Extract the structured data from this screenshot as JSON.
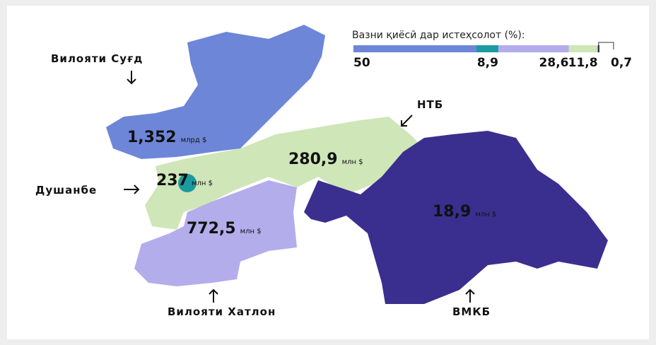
{
  "legend": {
    "title": "Вазни қиёсӣ дар истеҳсолот (%):",
    "segments": [
      {
        "value": 50,
        "label": "50",
        "color": "#6e86d8"
      },
      {
        "value": 8.9,
        "label": "8,9",
        "color": "#1b9aa0"
      },
      {
        "value": 28.6,
        "label": "28,6",
        "color": "#b3adec"
      },
      {
        "value": 11.8,
        "label": "11,8",
        "color": "#cfe6b8"
      },
      {
        "value": 0.7,
        "label": "0,7",
        "color": "#3a2f8f"
      }
    ]
  },
  "regions": [
    {
      "name": "Вилояти Суғд",
      "amount": "1,352",
      "unit": "млрд $"
    },
    {
      "name": "Душанбе",
      "amount": "237",
      "unit": "млн $"
    },
    {
      "name": "НТБ",
      "amount": "280,9",
      "unit": "млн $"
    },
    {
      "name": "Вилояти Хатлон",
      "amount": "772,5",
      "unit": "млн $"
    },
    {
      "name": "ВМКБ",
      "amount": "18,9",
      "unit": "млн $"
    }
  ]
}
